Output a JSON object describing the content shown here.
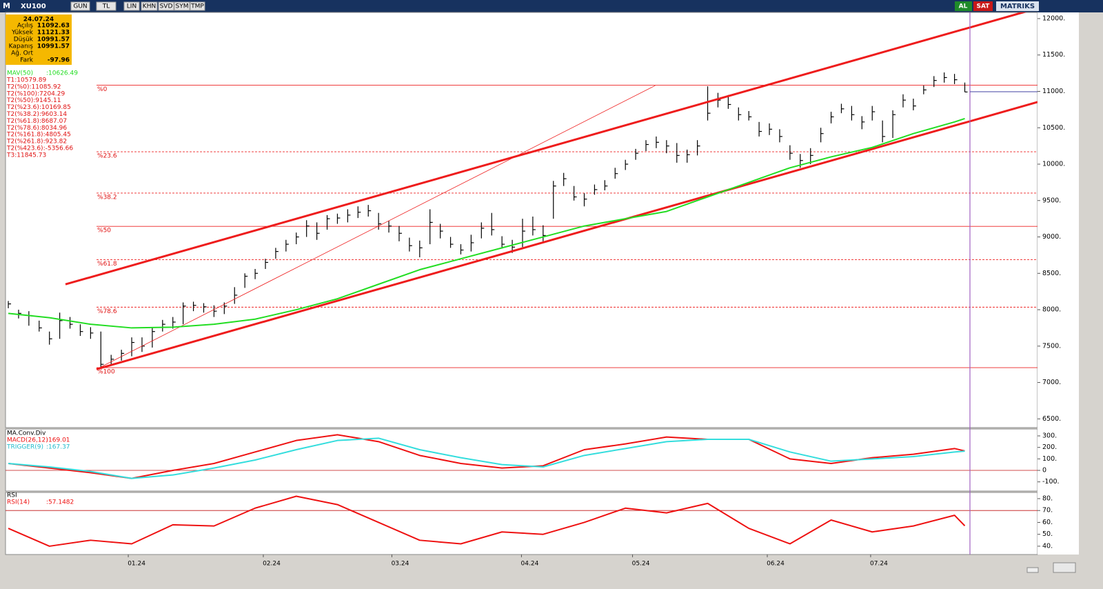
{
  "toolbar": {
    "logo": "M",
    "symbol": "XU100",
    "buttons": [
      "GUN",
      "TL",
      "LIN",
      "KHN",
      "SVD",
      "SYM",
      "TMP"
    ],
    "buy": "AL",
    "sell": "SAT",
    "brand": "MATRIKS"
  },
  "info": {
    "date": "24.07.24",
    "rows": [
      {
        "label": "Açılış",
        "value": "11092.63"
      },
      {
        "label": "Yüksek",
        "value": "11121.33"
      },
      {
        "label": "Düşük",
        "value": "10991.57"
      },
      {
        "label": "Kapanış",
        "value": "10991.57"
      },
      {
        "label": "Ağ. Ort"
      },
      {
        "label": "Fark",
        "value": "-97.96"
      }
    ]
  },
  "legend": [
    "T1:10579.89",
    "T2(%0):11085.92",
    "T2(%100):7204.29",
    "T2(%50):9145.11",
    "T2(%23.6):10169.85",
    "T2(%38.2):9603.14",
    "T2(%61.8):8687.07",
    "T2(%78.6):8034.96",
    "T2(%161.8):4805.45",
    "T2(%261.8):923.82",
    "T2(%423.6):-5356.66",
    "T3:11845.73"
  ],
  "chart_data": [
    {
      "type": "ohlc",
      "color": "#000000",
      "xlim": [
        -0.27,
        100.07
      ],
      "ylim": [
        6380,
        12085
      ],
      "yticks": [
        {
          "value": 12000,
          "label": "12000."
        },
        {
          "value": 11500,
          "label": "11500."
        },
        {
          "value": 11000,
          "label": "11000."
        },
        {
          "value": 10500,
          "label": "10500."
        },
        {
          "value": 10000,
          "label": "10000."
        },
        {
          "value": 9500,
          "label": "9500."
        },
        {
          "value": 9000,
          "label": "9000."
        },
        {
          "value": 8500,
          "label": "8500."
        },
        {
          "value": 8000,
          "label": "8000."
        },
        {
          "value": 7500,
          "label": "7500."
        },
        {
          "value": 7000,
          "label": "7000."
        },
        {
          "value": 6500,
          "label": "6500."
        }
      ],
      "high": [
        8120,
        8000,
        7980,
        7850,
        7700,
        7960,
        7900,
        7800,
        7760,
        7700,
        7380,
        7450,
        7620,
        7620,
        7760,
        7860,
        7900,
        8100,
        8110,
        8090,
        8060,
        8100,
        8310,
        8500,
        8560,
        8700,
        8850,
        8960,
        9060,
        9230,
        9200,
        9300,
        9320,
        9380,
        9420,
        9440,
        9330,
        9220,
        9150,
        8990,
        8950,
        9380,
        9180,
        9000,
        8900,
        9030,
        9200,
        9330,
        9010,
        8960,
        9250,
        9280,
        9160,
        9770,
        9880,
        9700,
        9600,
        9720,
        9780,
        9950,
        10060,
        10210,
        10330,
        10380,
        10330,
        10290,
        10200,
        10330,
        11070,
        10980,
        10950,
        10780,
        10730,
        10580,
        10560,
        10480,
        10260,
        10140,
        10220,
        10500,
        10720,
        10830,
        10800,
        10660,
        10800,
        10600,
        10740,
        10960,
        10900,
        11080,
        11210,
        11260,
        11240,
        11121.33
      ],
      "low": [
        8020,
        7880,
        7780,
        7700,
        7520,
        7600,
        7740,
        7640,
        7600,
        7200,
        7230,
        7300,
        7360,
        7420,
        7480,
        7700,
        7740,
        7800,
        7980,
        7960,
        7900,
        7940,
        8080,
        8300,
        8420,
        8560,
        8700,
        8800,
        8900,
        9000,
        8960,
        9100,
        9180,
        9200,
        9260,
        9280,
        9100,
        9060,
        8940,
        8800,
        8720,
        8900,
        8980,
        8850,
        8760,
        8800,
        8980,
        9020,
        8840,
        8780,
        8860,
        9020,
        8940,
        9250,
        9700,
        9500,
        9420,
        9580,
        9640,
        9800,
        9920,
        10060,
        10180,
        10220,
        10150,
        10020,
        10020,
        10120,
        10600,
        10780,
        10760,
        10600,
        10600,
        10380,
        10400,
        10300,
        10060,
        9950,
        10000,
        10300,
        10560,
        10700,
        10600,
        10480,
        10600,
        10300,
        10360,
        10780,
        10740,
        10960,
        11060,
        11120,
        11100,
        10991.57
      ],
      "close": [
        8080,
        7950,
        7920,
        7750,
        7600,
        7850,
        7800,
        7700,
        7680,
        7250,
        7320,
        7400,
        7550,
        7500,
        7700,
        7800,
        7830,
        8050,
        8060,
        8040,
        7980,
        8050,
        8200,
        8460,
        8500,
        8650,
        8800,
        8900,
        9000,
        9150,
        9050,
        9250,
        9260,
        9300,
        9340,
        9360,
        9180,
        9150,
        9050,
        8880,
        8850,
        9200,
        9080,
        8900,
        8820,
        8920,
        9120,
        9100,
        8900,
        8860,
        9080,
        9100,
        9020,
        9700,
        9800,
        9550,
        9520,
        9650,
        9700,
        9870,
        10000,
        10150,
        10270,
        10300,
        10250,
        10120,
        10130,
        10250,
        10700,
        10880,
        10820,
        10680,
        10650,
        10450,
        10480,
        10380,
        10150,
        10050,
        10120,
        10420,
        10650,
        10760,
        10680,
        10580,
        10720,
        10380,
        10680,
        10880,
        10800,
        11020,
        11150,
        11190,
        11160,
        10991.57
      ],
      "series": [
        {
          "name": "MAV(50)",
          "value_label": ":10626.49",
          "color": "#22dd22",
          "x": [
            0,
            4,
            8,
            12,
            16,
            20,
            24,
            28,
            32,
            36,
            40,
            44,
            48,
            52,
            56,
            60,
            64,
            68,
            72,
            76,
            80,
            84,
            88,
            92,
            93
          ],
          "values": [
            7950,
            7890,
            7800,
            7750,
            7760,
            7800,
            7870,
            8000,
            8150,
            8350,
            8550,
            8700,
            8850,
            9000,
            9150,
            9250,
            9350,
            9550,
            9750,
            9950,
            10100,
            10230,
            10420,
            10580,
            10626.49
          ]
        }
      ],
      "fib_levels": [
        {
          "label": "%0",
          "value": 11085.92,
          "style": "solid"
        },
        {
          "label": "%23.6",
          "value": 10169.85,
          "style": "dashed"
        },
        {
          "label": "%38.2",
          "value": 9603.14,
          "style": "dashed"
        },
        {
          "label": "%50",
          "value": 9145.11,
          "style": "solid"
        },
        {
          "label": "%61.8",
          "value": 8687.07,
          "style": "dashed"
        },
        {
          "label": "%78.6",
          "value": 8034.96,
          "style": "dashed"
        },
        {
          "label": "%100",
          "value": 7204.29,
          "style": "solid"
        }
      ],
      "trend_lines": [
        {
          "color": "#ee1c1c",
          "width": 3,
          "x": [
            5.56,
            100.07
          ],
          "values": [
            8349,
            12142
          ]
        },
        {
          "color": "#ee1c1c",
          "width": 3,
          "x": [
            8.58,
            100.07
          ],
          "values": [
            7183,
            10853
          ]
        },
        {
          "color": "#ee1c1c",
          "width": 0.8,
          "x": [
            8.58,
            62.9
          ],
          "values": [
            7183,
            11080
          ]
        }
      ]
    },
    {
      "type": "line",
      "title": "MA.Conv.Div",
      "xlim": [
        -0.27,
        100.07
      ],
      "ylim": [
        -180,
        360
      ],
      "yticks": [
        {
          "value": 300,
          "label": "300."
        },
        {
          "value": 200,
          "label": "200."
        },
        {
          "value": 100,
          "label": "100."
        },
        0,
        {
          "value": -100,
          "label": "-100."
        }
      ],
      "ref_line": 0,
      "series": [
        {
          "name": "MACD(26,12)",
          "value_label": ":169.01",
          "color": "#ee1111",
          "x": [
            0,
            4,
            8,
            12,
            16,
            20,
            24,
            28,
            32,
            36,
            40,
            44,
            48,
            52,
            56,
            60,
            64,
            68,
            72,
            76,
            80,
            84,
            88,
            92,
            93
          ],
          "values": [
            60,
            20,
            -20,
            -70,
            0,
            60,
            160,
            260,
            310,
            250,
            130,
            60,
            20,
            40,
            180,
            230,
            290,
            270,
            270,
            100,
            60,
            110,
            140,
            190,
            169.01
          ]
        },
        {
          "name": "TRIGGER(9)",
          "value_label": ":167.37",
          "color": "#33dddd",
          "x": [
            0,
            4,
            8,
            12,
            16,
            20,
            24,
            28,
            32,
            36,
            40,
            44,
            48,
            52,
            56,
            60,
            64,
            68,
            72,
            76,
            80,
            84,
            88,
            92,
            93
          ],
          "values": [
            60,
            30,
            -10,
            -70,
            -40,
            20,
            90,
            180,
            260,
            280,
            180,
            110,
            50,
            30,
            130,
            190,
            250,
            270,
            270,
            160,
            80,
            100,
            120,
            160,
            167.37
          ]
        }
      ]
    },
    {
      "type": "line",
      "title": "RSI",
      "xlim": [
        -0.27,
        100.07
      ],
      "ylim": [
        33,
        85.2
      ],
      "yticks": [
        {
          "value": 80,
          "label": "80."
        },
        {
          "value": 70,
          "label": "70."
        },
        {
          "value": 60,
          "label": "60."
        },
        {
          "value": 50,
          "label": "50."
        },
        {
          "value": 40,
          "label": "40."
        }
      ],
      "ref_line": 70,
      "xticks": [
        {
          "value": 12.47,
          "label": "01.24"
        },
        {
          "value": 25.6,
          "label": "02.24"
        },
        {
          "value": 38.1,
          "label": "03.24"
        },
        {
          "value": 50.7,
          "label": "04.24"
        },
        {
          "value": 61.5,
          "label": "05.24"
        },
        {
          "value": 74.6,
          "label": "06.24"
        },
        {
          "value": 84.65,
          "label": "07.24"
        }
      ],
      "series": [
        {
          "name": "RSI(14)",
          "value_label": ":57.1482",
          "color": "#ee1111",
          "x": [
            0,
            4,
            8,
            12,
            16,
            20,
            24,
            28,
            32,
            36,
            40,
            44,
            48,
            52,
            56,
            60,
            64,
            68,
            72,
            76,
            80,
            84,
            88,
            92,
            93
          ],
          "values": [
            55,
            40,
            45,
            42,
            58,
            57,
            72,
            82,
            75,
            60,
            45,
            42,
            52,
            50,
            60,
            72,
            68,
            76,
            55,
            42,
            62,
            52,
            57,
            66,
            57.1482
          ]
        }
      ]
    }
  ]
}
